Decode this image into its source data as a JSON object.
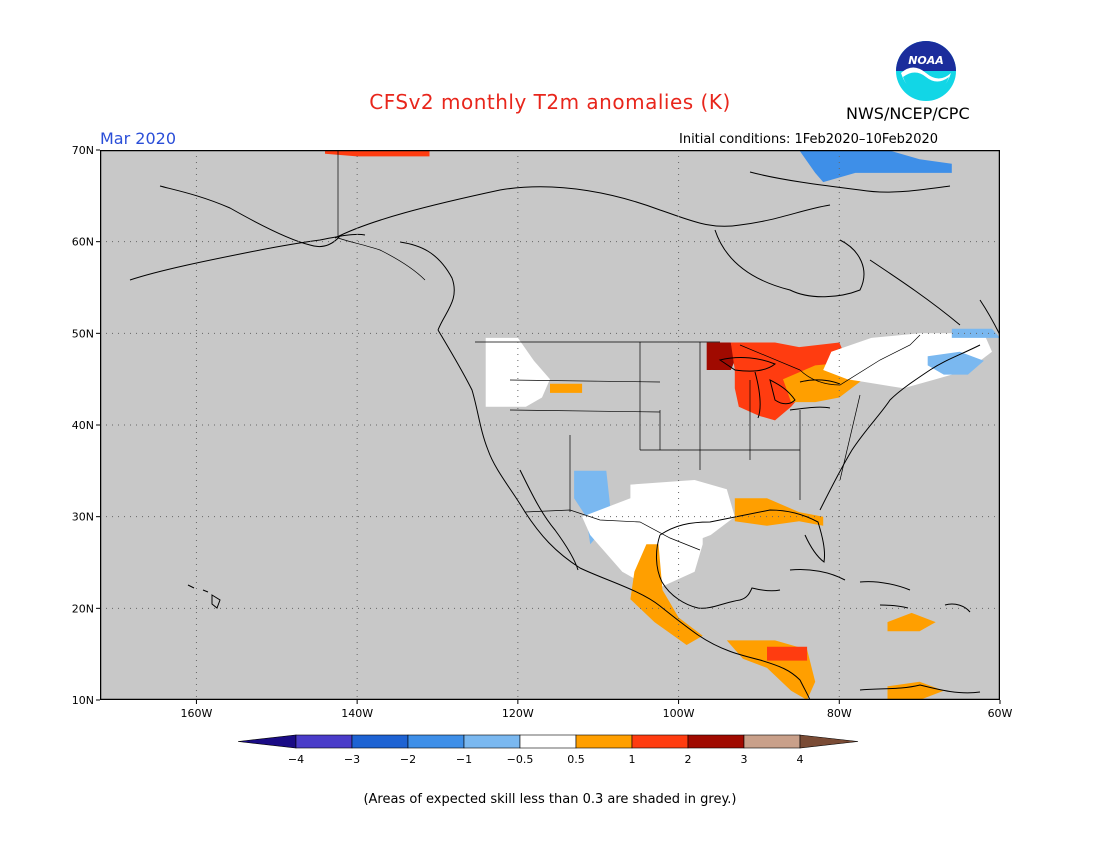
{
  "header": {
    "title": "CFSv2 monthly T2m anomalies (K)",
    "agency": "NWS/NCEP/CPC",
    "logo_text": "NOAA",
    "month": "Mar 2020",
    "initial_conditions": "Initial conditions: 1Feb2020–10Feb2020"
  },
  "map": {
    "projection": "lat-lon",
    "lon_range": [
      -172,
      -60
    ],
    "lat_range": [
      10,
      70
    ],
    "background_color": "#c8c8c8",
    "lat_ticks": [
      {
        "value": 70,
        "label": "70N"
      },
      {
        "value": 60,
        "label": "60N"
      },
      {
        "value": 50,
        "label": "50N"
      },
      {
        "value": 40,
        "label": "40N"
      },
      {
        "value": 30,
        "label": "30N"
      },
      {
        "value": 20,
        "label": "20N"
      },
      {
        "value": 10,
        "label": "10N"
      }
    ],
    "lon_ticks": [
      {
        "value": -160,
        "label": "160W"
      },
      {
        "value": -140,
        "label": "140W"
      },
      {
        "value": -120,
        "label": "120W"
      },
      {
        "value": -100,
        "label": "100W"
      },
      {
        "value": -80,
        "label": "80W"
      },
      {
        "value": -60,
        "label": "60W"
      }
    ],
    "anomaly_regions": [
      {
        "name": "alaska-north-slope-warm",
        "category": "1 to 2",
        "points": [
          [
            -144,
            70
          ],
          [
            -131,
            70
          ],
          [
            -131,
            69.3
          ],
          [
            -140,
            69.3
          ],
          [
            -144,
            69.6
          ]
        ]
      },
      {
        "name": "canadian-arctic-cold",
        "category": "-2 to -1",
        "points": [
          [
            -85,
            70
          ],
          [
            -74,
            70
          ],
          [
            -70,
            69
          ],
          [
            -66,
            68.5
          ],
          [
            -66,
            67.5
          ],
          [
            -78,
            67.5
          ],
          [
            -82,
            66.5
          ],
          [
            -83,
            67.5
          ]
        ]
      },
      {
        "name": "pacific-nw-neutral",
        "category": "-0.5 to 0.5",
        "points": [
          [
            -124,
            49.5
          ],
          [
            -120,
            49.5
          ],
          [
            -118,
            47
          ],
          [
            -116,
            45
          ],
          [
            -117,
            43
          ],
          [
            -119,
            42
          ],
          [
            -124,
            42
          ],
          [
            -124,
            46
          ]
        ]
      },
      {
        "name": "idaho-warm",
        "category": "0.5 to 1",
        "points": [
          [
            -116,
            44.5
          ],
          [
            -112,
            44.5
          ],
          [
            -112,
            43.5
          ],
          [
            -116,
            43.5
          ]
        ]
      },
      {
        "name": "minnesota-very-warm",
        "category": "2 to 3",
        "points": [
          [
            -96.5,
            49
          ],
          [
            -93.5,
            49
          ],
          [
            -93,
            47
          ],
          [
            -93.5,
            46
          ],
          [
            -96.5,
            46
          ]
        ]
      },
      {
        "name": "upper-midwest-warm",
        "category": "1 to 2",
        "points": [
          [
            -93.5,
            49
          ],
          [
            -88,
            49
          ],
          [
            -85,
            48.5
          ],
          [
            -80,
            49
          ],
          [
            -79,
            47
          ],
          [
            -82,
            46
          ],
          [
            -84,
            44
          ],
          [
            -86,
            42
          ],
          [
            -88,
            40.5
          ],
          [
            -90,
            41
          ],
          [
            -92.5,
            42
          ],
          [
            -93,
            44
          ],
          [
            -93,
            46
          ]
        ]
      },
      {
        "name": "great-lakes-mod-warm",
        "category": "0.5 to 1",
        "points": [
          [
            -87,
            45
          ],
          [
            -83,
            46.5
          ],
          [
            -77,
            47
          ],
          [
            -77,
            45
          ],
          [
            -80,
            43
          ],
          [
            -83,
            42.5
          ],
          [
            -86,
            42.5
          ]
        ]
      },
      {
        "name": "quebec-neutral",
        "category": "-0.5 to 0.5",
        "points": [
          [
            -81,
            48
          ],
          [
            -76,
            49.5
          ],
          [
            -70,
            50
          ],
          [
            -62,
            50
          ],
          [
            -61,
            48
          ],
          [
            -64,
            46
          ],
          [
            -68,
            45
          ],
          [
            -72,
            44
          ],
          [
            -79,
            45
          ],
          [
            -82,
            46
          ]
        ]
      },
      {
        "name": "maritimes-cool",
        "category": "-1 to -0.5",
        "points": [
          [
            -69,
            47.5
          ],
          [
            -65,
            48
          ],
          [
            -62,
            47
          ],
          [
            -64,
            45.5
          ],
          [
            -67,
            45.5
          ],
          [
            -69,
            46.5
          ]
        ]
      },
      {
        "name": "labrador-cool",
        "category": "-1 to -0.5",
        "points": [
          [
            -66,
            50.5
          ],
          [
            -61,
            50.5
          ],
          [
            -60,
            49.5
          ],
          [
            -66,
            49.5
          ]
        ]
      },
      {
        "name": "southwest-cool",
        "category": "-1 to -0.5",
        "points": [
          [
            -113,
            35
          ],
          [
            -109,
            35
          ],
          [
            -108.5,
            31
          ],
          [
            -110,
            28
          ],
          [
            -111,
            27
          ],
          [
            -111.5,
            30
          ],
          [
            -113,
            32
          ]
        ]
      },
      {
        "name": "northern-mexico-neutral",
        "category": "-0.5 to 0.5",
        "points": [
          [
            -112,
            30
          ],
          [
            -106,
            32
          ],
          [
            -100,
            31.5
          ],
          [
            -97,
            30
          ],
          [
            -97,
            27
          ],
          [
            -98,
            24
          ],
          [
            -103,
            22
          ],
          [
            -107,
            24
          ],
          [
            -110,
            27
          ],
          [
            -111,
            28
          ]
        ]
      },
      {
        "name": "texas-neutral",
        "category": "-0.5 to 0.5",
        "points": [
          [
            -106,
            33.5
          ],
          [
            -98,
            34
          ],
          [
            -94,
            33
          ],
          [
            -93,
            30
          ],
          [
            -96,
            28
          ],
          [
            -99,
            27
          ],
          [
            -101,
            29
          ],
          [
            -104,
            29.5
          ],
          [
            -106,
            31
          ]
        ]
      },
      {
        "name": "gulf-coast-warm",
        "category": "0.5 to 1",
        "points": [
          [
            -93,
            32
          ],
          [
            -89,
            32
          ],
          [
            -85,
            30.5
          ],
          [
            -82,
            30
          ],
          [
            -82,
            29
          ],
          [
            -85,
            29.5
          ],
          [
            -89,
            29
          ],
          [
            -93,
            29.5
          ]
        ]
      },
      {
        "name": "west-mexico-warm",
        "category": "0.5 to 1",
        "points": [
          [
            -104,
            27
          ],
          [
            -102.5,
            27
          ],
          [
            -102,
            22
          ],
          [
            -100,
            19
          ],
          [
            -97,
            17
          ],
          [
            -99,
            16
          ],
          [
            -103,
            18.5
          ],
          [
            -106,
            21
          ],
          [
            -105.5,
            24
          ]
        ]
      },
      {
        "name": "central-america-warm",
        "category": "0.5 to 1",
        "points": [
          [
            -94,
            16.5
          ],
          [
            -88,
            16.5
          ],
          [
            -84,
            15.5
          ],
          [
            -83,
            12
          ],
          [
            -84,
            10
          ],
          [
            -86,
            11
          ],
          [
            -89,
            13.5
          ],
          [
            -92,
            14.5
          ]
        ]
      },
      {
        "name": "honduras-warm",
        "category": "1 to 2",
        "points": [
          [
            -89,
            15.8
          ],
          [
            -84,
            15.8
          ],
          [
            -84,
            14.3
          ],
          [
            -89,
            14.3
          ]
        ]
      },
      {
        "name": "caribbean-warm",
        "category": "0.5 to 1",
        "points": [
          [
            -74,
            18.5
          ],
          [
            -71,
            19.5
          ],
          [
            -68,
            18.5
          ],
          [
            -70,
            17.5
          ],
          [
            -74,
            17.5
          ]
        ]
      },
      {
        "name": "venezuela-warm",
        "category": "0.5 to 1",
        "points": [
          [
            -74,
            11.5
          ],
          [
            -70,
            12
          ],
          [
            -67,
            11
          ],
          [
            -70,
            10
          ],
          [
            -74,
            10
          ]
        ]
      }
    ]
  },
  "colorbar": {
    "categories": [
      {
        "range": "< -4",
        "color": "#1a0b85"
      },
      {
        "range": "-4 to -3",
        "color": "#4a3cc9"
      },
      {
        "range": "-3 to -2",
        "color": "#1e63d3"
      },
      {
        "range": "-2 to -1",
        "color": "#3e8fe8"
      },
      {
        "range": "-1 to -0.5",
        "color": "#7ab8f0"
      },
      {
        "range": "-0.5 to 0.5",
        "color": "#ffffff"
      },
      {
        "range": "0.5 to 1",
        "color": "#ff9f00"
      },
      {
        "range": "1 to 2",
        "color": "#ff3c10"
      },
      {
        "range": "2 to 3",
        "color": "#a00a00"
      },
      {
        "range": "3 to 4",
        "color": "#c9a08a"
      },
      {
        "range": "> 4",
        "color": "#7a4b35"
      }
    ],
    "labels": [
      "−4",
      "−3",
      "−2",
      "−1",
      "−0.5",
      "0.5",
      "1",
      "2",
      "3",
      "4"
    ]
  },
  "footer": {
    "skill_note": "(Areas of expected skill less than 0.3 are shaded in grey.)"
  }
}
